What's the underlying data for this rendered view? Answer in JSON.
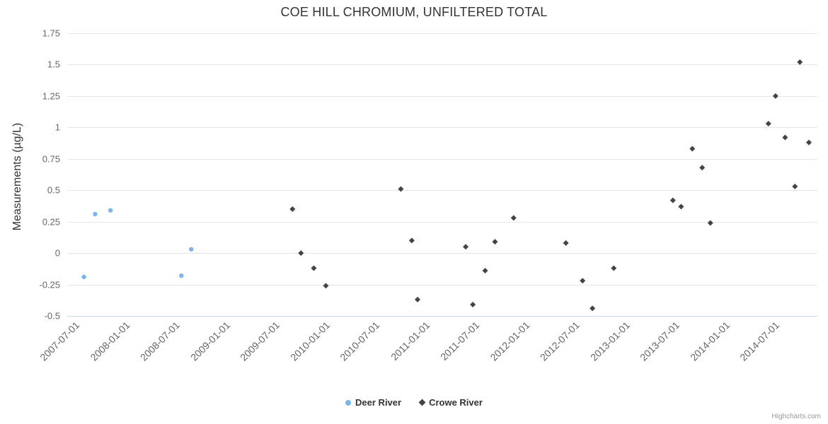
{
  "credit": "Highcharts.com",
  "chart_data": {
    "type": "scatter",
    "title": "COE HILL CHROMIUM, UNFILTERED TOTAL",
    "xlabel": "",
    "ylabel": "Measurements (µg/L)",
    "ylim": [
      -0.5,
      1.75
    ],
    "y_ticks": [
      "-0.5",
      "-0.25",
      "0",
      "0.25",
      "0.5",
      "0.75",
      "1",
      "1.25",
      "1.5",
      "1.75"
    ],
    "x_ticks": [
      "2007-07-01",
      "2008-01-01",
      "2008-07-01",
      "2009-01-01",
      "2009-07-01",
      "2010-01-01",
      "2010-07-01",
      "2011-01-01",
      "2011-07-01",
      "2012-01-01",
      "2012-07-01",
      "2013-01-01",
      "2013-07-01",
      "2014-01-01",
      "2014-07-01"
    ],
    "x_range": [
      "2007-05-15",
      "2014-11-15"
    ],
    "grid": "horizontal-only",
    "legend_position": "bottom-center",
    "grid_color": "#e6e6e6",
    "axis_line_color": "#ccd6eb",
    "tick_label_color": "#666666",
    "series": [
      {
        "name": "Deer River",
        "color": "#7cb5ec",
        "marker": "circle",
        "points": [
          [
            "2007-07-15",
            -0.19
          ],
          [
            "2007-08-25",
            0.31
          ],
          [
            "2007-10-20",
            0.34
          ],
          [
            "2008-07-05",
            -0.18
          ],
          [
            "2008-08-10",
            0.03
          ]
        ]
      },
      {
        "name": "Crowe River",
        "color": "#434348",
        "marker": "diamond",
        "points": [
          [
            "2009-08-15",
            0.35
          ],
          [
            "2009-09-15",
            0.0
          ],
          [
            "2009-11-01",
            -0.12
          ],
          [
            "2009-12-15",
            -0.26
          ],
          [
            "2010-09-15",
            0.51
          ],
          [
            "2010-10-25",
            0.1
          ],
          [
            "2010-11-15",
            -0.37
          ],
          [
            "2011-05-10",
            0.05
          ],
          [
            "2011-06-05",
            -0.41
          ],
          [
            "2011-07-20",
            -0.14
          ],
          [
            "2011-08-25",
            0.09
          ],
          [
            "2011-11-01",
            0.28
          ],
          [
            "2012-05-10",
            0.08
          ],
          [
            "2012-07-10",
            -0.22
          ],
          [
            "2012-08-15",
            -0.44
          ],
          [
            "2012-11-01",
            -0.12
          ],
          [
            "2013-06-05",
            0.42
          ],
          [
            "2013-07-05",
            0.37
          ],
          [
            "2013-08-15",
            0.83
          ],
          [
            "2013-09-20",
            0.68
          ],
          [
            "2013-10-20",
            0.24
          ],
          [
            "2014-05-20",
            1.03
          ],
          [
            "2014-06-15",
            1.25
          ],
          [
            "2014-07-20",
            0.92
          ],
          [
            "2014-08-25",
            0.53
          ],
          [
            "2014-09-12",
            1.52
          ],
          [
            "2014-10-15",
            0.88
          ]
        ]
      }
    ]
  }
}
